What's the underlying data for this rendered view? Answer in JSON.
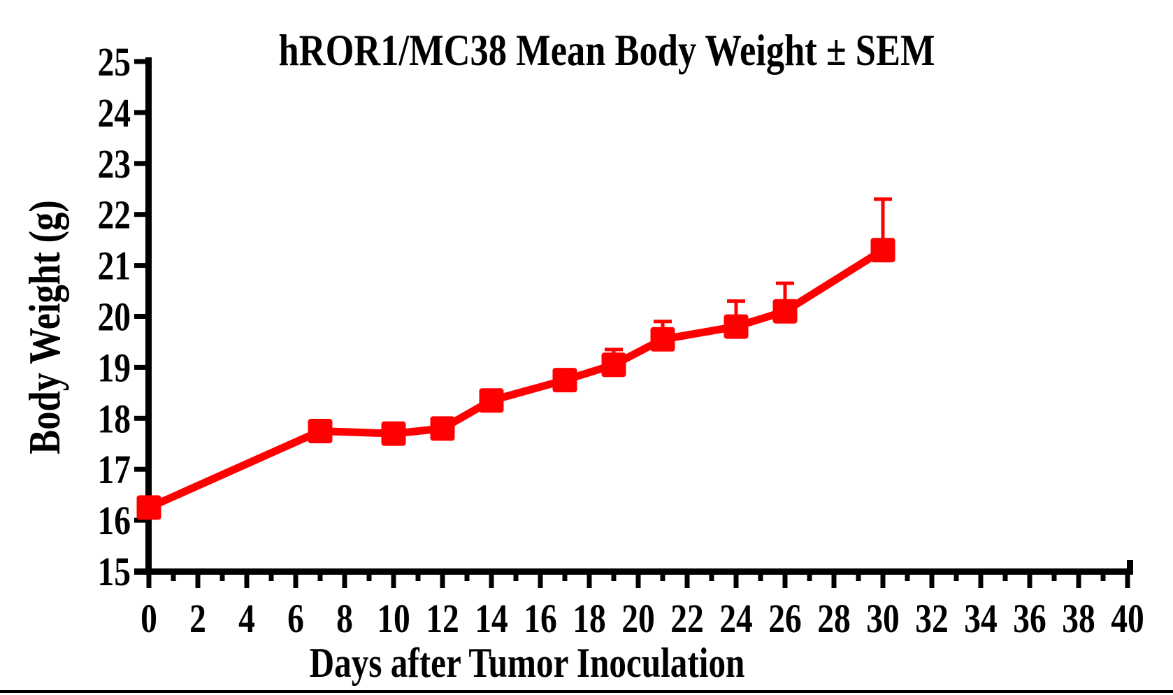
{
  "title": "hROR1/MC38 Mean Body Weight ± SEM",
  "colors": {
    "series": "#FF0000",
    "axis": "#000000",
    "background": "#FFFFFF"
  },
  "chart_data": {
    "type": "line",
    "title": "hROR1/MC38 Mean Body Weight ± SEM",
    "xlabel": "Days after Tumor Inoculation",
    "ylabel": "Body Weight (g)",
    "xlim": [
      0,
      40
    ],
    "ylim": [
      15,
      25
    ],
    "grid": false,
    "legend_position": "none",
    "error_bars": "SEM, upper side only",
    "xticks_major": [
      0,
      2,
      4,
      6,
      8,
      10,
      12,
      14,
      16,
      18,
      20,
      22,
      24,
      26,
      28,
      30,
      32,
      34,
      36,
      38,
      40
    ],
    "xticks_minor": [
      1,
      3,
      5,
      7,
      9,
      11,
      13,
      15,
      17,
      19,
      21,
      23,
      25,
      27,
      29,
      31,
      33,
      35,
      37,
      39
    ],
    "yticks": [
      15,
      16,
      17,
      18,
      19,
      20,
      21,
      22,
      23,
      24,
      25
    ],
    "series": [
      {
        "name": "hROR1/MC38 Mean Body Weight",
        "color": "#FF0000",
        "marker": "filled-square",
        "x": [
          0,
          7,
          10,
          12,
          14,
          17,
          19,
          21,
          24,
          26,
          30
        ],
        "y": [
          16.25,
          17.75,
          17.7,
          17.8,
          18.35,
          18.75,
          19.05,
          19.55,
          19.8,
          20.1,
          21.3
        ],
        "sem_upper": [
          0,
          0,
          0,
          0,
          0,
          0,
          0.3,
          0.35,
          0.5,
          0.55,
          1.0
        ]
      }
    ]
  }
}
